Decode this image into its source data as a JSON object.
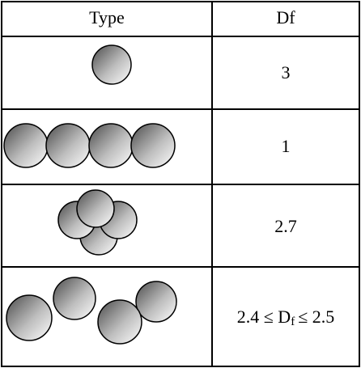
{
  "table": {
    "header": [
      "Type",
      "Df"
    ],
    "rows": [
      [
        "3"
      ],
      [
        "1"
      ],
      [
        "2.7"
      ],
      [
        {
          "parts": [
            "2.4 ≤ D",
            "f",
            "≤ 2.5"
          ]
        }
      ]
    ]
  }
}
